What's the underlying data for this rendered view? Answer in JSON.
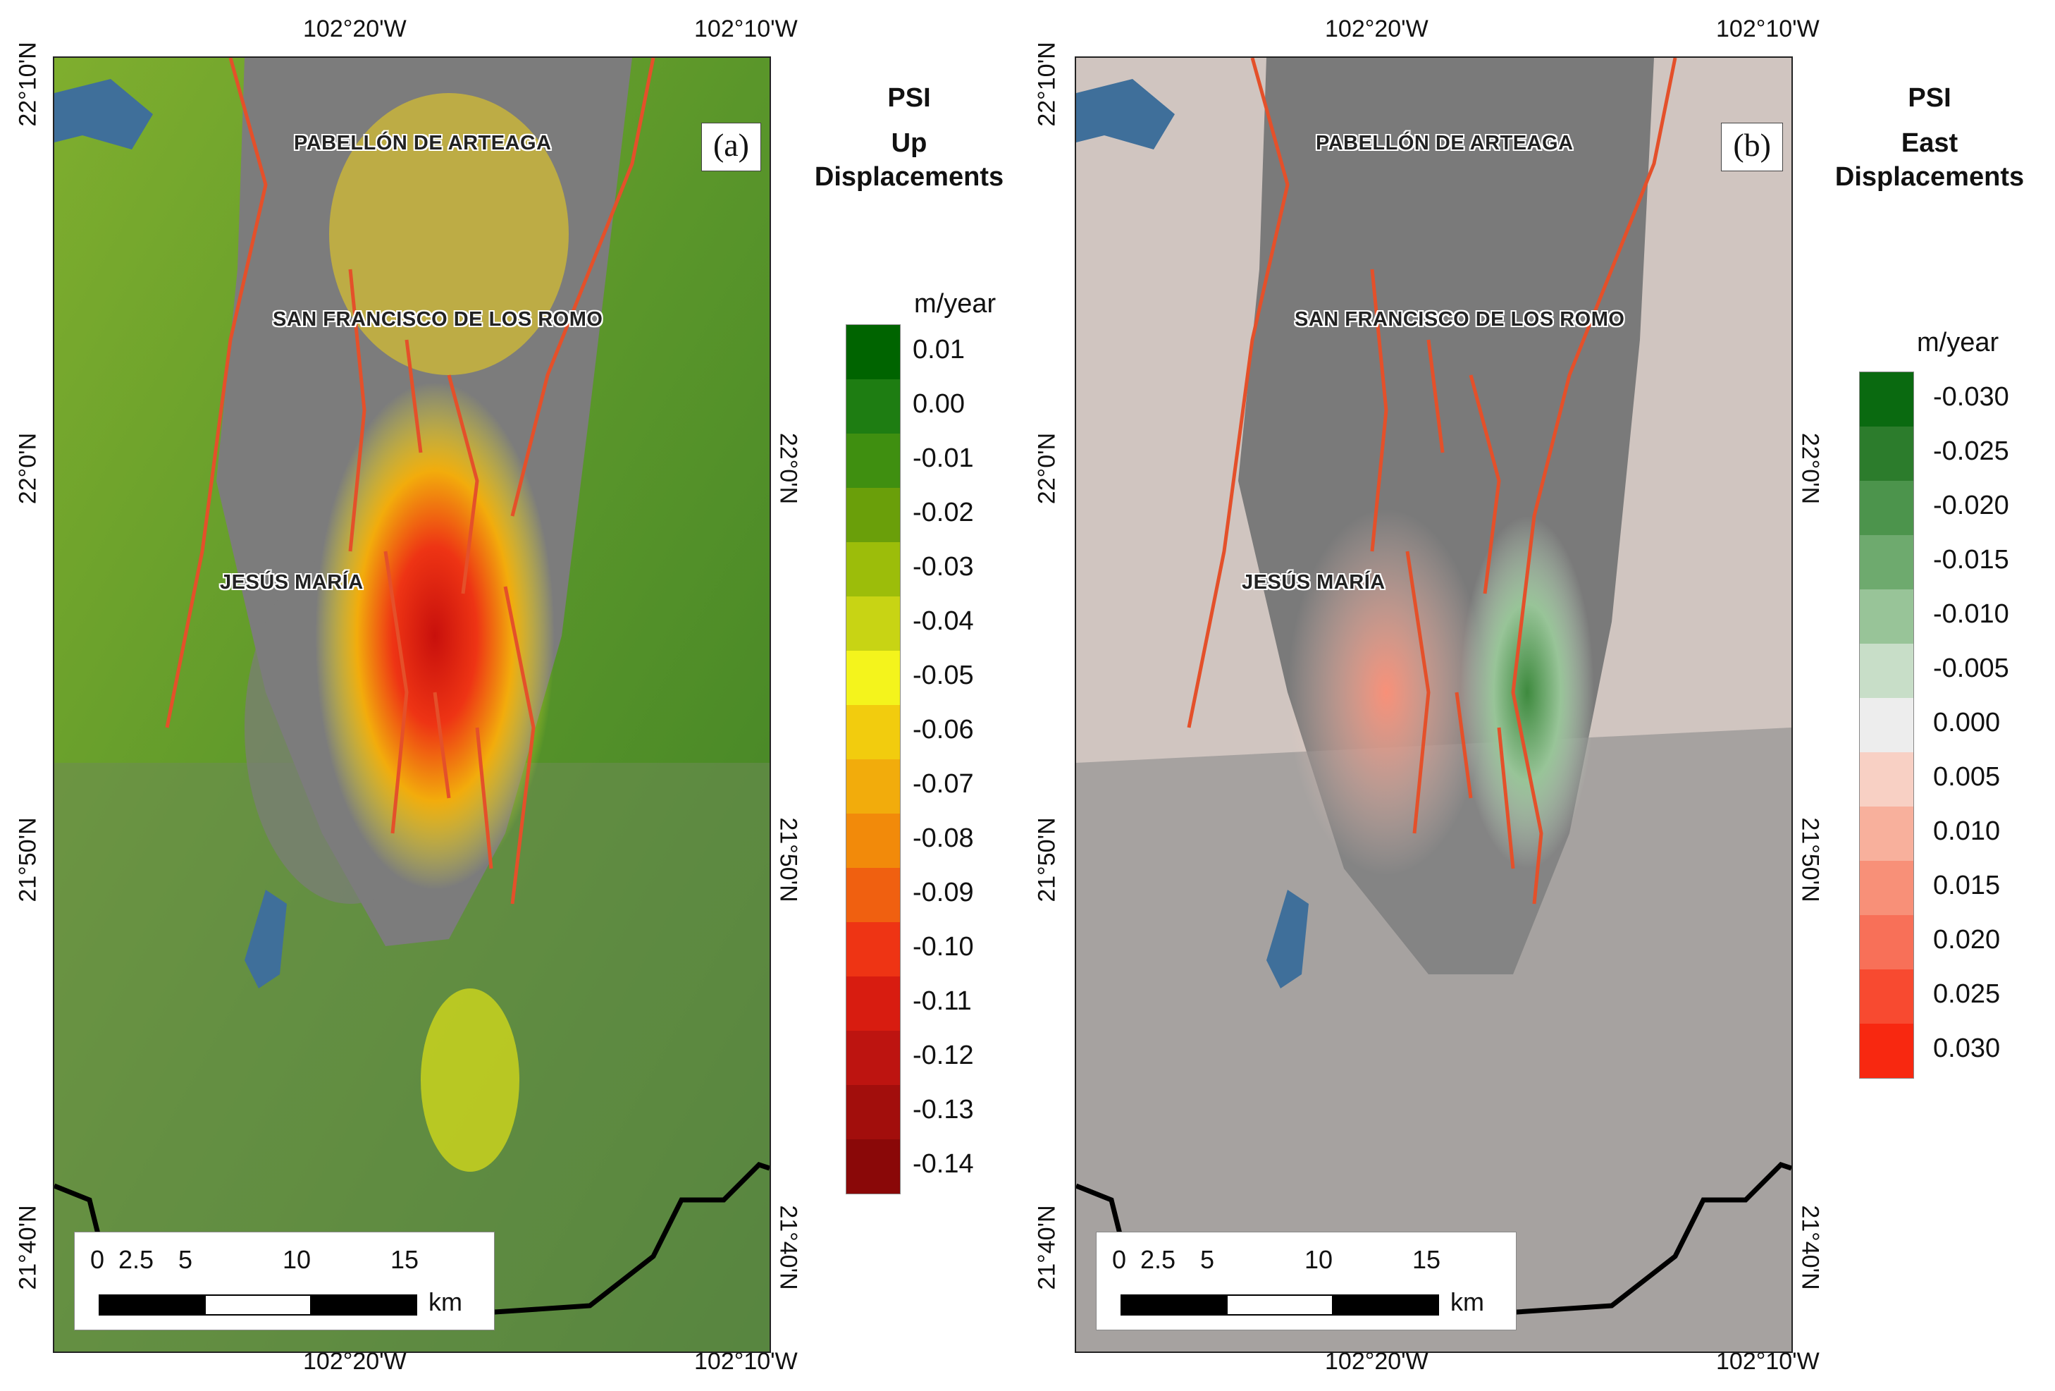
{
  "panels": [
    {
      "id": "a",
      "letter": "(a)",
      "towns": [
        "PABELLÓN DE ARTEAGA",
        "SAN FRANCISCO DE LOS ROMO",
        "JESÚS MARÍA"
      ],
      "legend": {
        "title1": "PSI",
        "title2": "Up",
        "title3": "Displacements",
        "unit": "m/year",
        "labels": [
          "0.01",
          "0.00",
          "-0.01",
          "-0.02",
          "-0.03",
          "-0.04",
          "-0.05",
          "-0.06",
          "-0.07",
          "-0.08",
          "-0.09",
          "-0.10",
          "-0.11",
          "-0.12",
          "-0.13",
          "-0.14"
        ],
        "colors": [
          "#006400",
          "#1e7d12",
          "#3f8f10",
          "#6a9f0a",
          "#9cbd0a",
          "#c8d414",
          "#f4f41c",
          "#f2cc0e",
          "#f2ac0c",
          "#f28a0a",
          "#f06010",
          "#ee3414",
          "#d81c10",
          "#bd1410",
          "#a20e0c",
          "#8a0808"
        ]
      }
    },
    {
      "id": "b",
      "letter": "(b)",
      "towns": [
        "PABELLÓN DE ARTEAGA",
        "SAN FRANCISCO DE LOS ROMO",
        "JESÚS MARÍA"
      ],
      "legend": {
        "title1": "PSI",
        "title2": "East",
        "title3": "Displacements",
        "unit": "m/year",
        "labels": [
          "-0.030",
          "-0.025",
          "-0.020",
          "-0.015",
          "-0.010",
          "-0.005",
          "0.000",
          "0.005",
          "0.010",
          "0.015",
          "0.020",
          "0.025",
          "0.030"
        ],
        "colors": [
          "#0a6a10",
          "#2c7c2c",
          "#4c944c",
          "#6eaa6e",
          "#98c498",
          "#c8dec8",
          "#ededed",
          "#f8d0c4",
          "#f8b09c",
          "#f89078",
          "#f87058",
          "#f84a30",
          "#f82810"
        ]
      }
    }
  ],
  "coordinates": {
    "lon_left": "102°20'W",
    "lon_right": "102°10'W",
    "lat_top": "22°10'N",
    "lat_mid": "22°0'N",
    "lat_low": "21°50'N",
    "lat_bottom": "21°40'N"
  },
  "scalebar": {
    "ticks": [
      "0",
      "2.5",
      "5",
      "10",
      "15"
    ],
    "unit": "km"
  },
  "colors": {
    "fault": "#e4502a",
    "state_boundary": "#000000",
    "water": "#3f6f9a",
    "map_gray": "#7c7c7c",
    "vegetation_green": "#5f9a2e"
  }
}
